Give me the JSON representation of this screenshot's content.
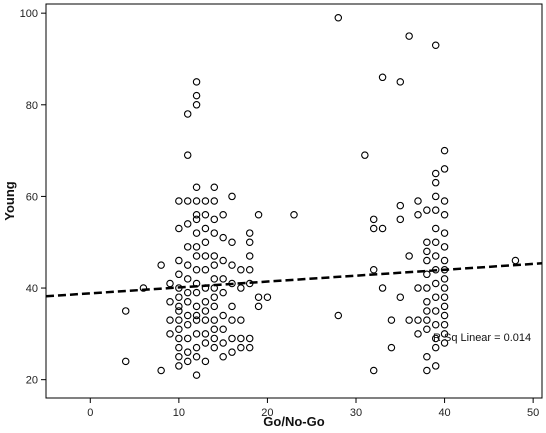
{
  "chart_data": {
    "type": "scatter",
    "xlabel": "Go/No-Go",
    "ylabel": "Young",
    "xlim": [
      -5,
      51
    ],
    "ylim": [
      16,
      102
    ],
    "xticks": [
      0,
      10,
      20,
      30,
      40,
      50
    ],
    "yticks": [
      20,
      40,
      60,
      80,
      100
    ],
    "xtick_labels": [
      "0",
      "10",
      "20",
      "30",
      "40",
      "50"
    ],
    "ytick_labels": [
      "20",
      "40",
      "60",
      "80",
      "100"
    ],
    "grid": false,
    "annotation": "R Sq Linear = 0.014",
    "fit_line": {
      "style": "dashed",
      "x": [
        -5,
        51
      ],
      "y": [
        38.2,
        45.4
      ]
    },
    "points": [
      [
        4,
        35
      ],
      [
        4,
        24
      ],
      [
        6,
        40
      ],
      [
        8,
        45
      ],
      [
        8,
        22
      ],
      [
        9,
        33
      ],
      [
        9,
        30
      ],
      [
        9,
        37
      ],
      [
        9,
        41
      ],
      [
        10,
        59
      ],
      [
        10,
        53
      ],
      [
        10,
        46
      ],
      [
        10,
        43
      ],
      [
        10,
        40
      ],
      [
        10,
        38
      ],
      [
        10,
        36
      ],
      [
        10,
        35
      ],
      [
        10,
        33
      ],
      [
        10,
        31
      ],
      [
        10,
        29
      ],
      [
        10,
        27
      ],
      [
        10,
        25
      ],
      [
        10,
        23
      ],
      [
        11,
        78
      ],
      [
        11,
        69
      ],
      [
        11,
        59
      ],
      [
        11,
        54
      ],
      [
        11,
        49
      ],
      [
        11,
        45
      ],
      [
        11,
        42
      ],
      [
        11,
        39
      ],
      [
        11,
        37
      ],
      [
        11,
        34
      ],
      [
        11,
        32
      ],
      [
        11,
        29
      ],
      [
        11,
        26
      ],
      [
        11,
        24
      ],
      [
        12,
        85
      ],
      [
        12,
        82
      ],
      [
        12,
        80
      ],
      [
        12,
        62
      ],
      [
        12,
        59
      ],
      [
        12,
        56
      ],
      [
        12,
        55
      ],
      [
        12,
        52
      ],
      [
        12,
        49
      ],
      [
        12,
        47
      ],
      [
        12,
        44
      ],
      [
        12,
        41
      ],
      [
        12,
        39
      ],
      [
        12,
        36
      ],
      [
        12,
        34
      ],
      [
        12,
        33
      ],
      [
        12,
        30
      ],
      [
        12,
        27
      ],
      [
        12,
        25
      ],
      [
        12,
        21
      ],
      [
        13,
        59
      ],
      [
        13,
        56
      ],
      [
        13,
        53
      ],
      [
        13,
        50
      ],
      [
        13,
        47
      ],
      [
        13,
        44
      ],
      [
        13,
        40
      ],
      [
        13,
        37
      ],
      [
        13,
        35
      ],
      [
        13,
        33
      ],
      [
        13,
        30
      ],
      [
        13,
        28
      ],
      [
        13,
        24
      ],
      [
        14,
        62
      ],
      [
        14,
        59
      ],
      [
        14,
        55
      ],
      [
        14,
        52
      ],
      [
        14,
        47
      ],
      [
        14,
        45
      ],
      [
        14,
        42
      ],
      [
        14,
        40
      ],
      [
        14,
        38
      ],
      [
        14,
        36
      ],
      [
        14,
        33
      ],
      [
        14,
        31
      ],
      [
        14,
        29
      ],
      [
        14,
        27
      ],
      [
        15,
        56
      ],
      [
        15,
        51
      ],
      [
        15,
        46
      ],
      [
        15,
        42
      ],
      [
        15,
        39
      ],
      [
        15,
        34
      ],
      [
        15,
        31
      ],
      [
        15,
        28
      ],
      [
        15,
        25
      ],
      [
        16,
        60
      ],
      [
        16,
        50
      ],
      [
        16,
        45
      ],
      [
        16,
        41
      ],
      [
        16,
        36
      ],
      [
        16,
        33
      ],
      [
        16,
        29
      ],
      [
        16,
        26
      ],
      [
        17,
        44
      ],
      [
        17,
        40
      ],
      [
        17,
        33
      ],
      [
        17,
        29
      ],
      [
        17,
        27
      ],
      [
        18,
        52
      ],
      [
        18,
        50
      ],
      [
        18,
        47
      ],
      [
        18,
        44
      ],
      [
        18,
        41
      ],
      [
        18,
        29
      ],
      [
        18,
        27
      ],
      [
        19,
        56
      ],
      [
        19,
        38
      ],
      [
        19,
        36
      ],
      [
        20,
        38
      ],
      [
        23,
        56
      ],
      [
        28,
        99
      ],
      [
        28,
        34
      ],
      [
        31,
        69
      ],
      [
        32,
        55
      ],
      [
        32,
        53
      ],
      [
        32,
        44
      ],
      [
        32,
        22
      ],
      [
        33,
        86
      ],
      [
        33,
        53
      ],
      [
        33,
        40
      ],
      [
        34,
        33
      ],
      [
        34,
        27
      ],
      [
        35,
        85
      ],
      [
        35,
        58
      ],
      [
        35,
        55
      ],
      [
        35,
        38
      ],
      [
        36,
        95
      ],
      [
        36,
        47
      ],
      [
        36,
        33
      ],
      [
        37,
        59
      ],
      [
        37,
        56
      ],
      [
        37,
        40
      ],
      [
        37,
        33
      ],
      [
        37,
        30
      ],
      [
        38,
        57
      ],
      [
        38,
        50
      ],
      [
        38,
        48
      ],
      [
        38,
        46
      ],
      [
        38,
        43
      ],
      [
        38,
        40
      ],
      [
        38,
        37
      ],
      [
        38,
        35
      ],
      [
        38,
        33
      ],
      [
        38,
        31
      ],
      [
        38,
        25
      ],
      [
        38,
        22
      ],
      [
        39,
        93
      ],
      [
        39,
        65
      ],
      [
        39,
        63
      ],
      [
        39,
        60
      ],
      [
        39,
        57
      ],
      [
        39,
        53
      ],
      [
        39,
        50
      ],
      [
        39,
        47
      ],
      [
        39,
        44
      ],
      [
        39,
        41
      ],
      [
        39,
        38
      ],
      [
        39,
        35
      ],
      [
        39,
        32
      ],
      [
        39,
        29
      ],
      [
        39,
        27
      ],
      [
        39,
        23
      ],
      [
        40,
        70
      ],
      [
        40,
        66
      ],
      [
        40,
        59
      ],
      [
        40,
        56
      ],
      [
        40,
        52
      ],
      [
        40,
        49
      ],
      [
        40,
        46
      ],
      [
        40,
        44
      ],
      [
        40,
        42
      ],
      [
        40,
        40
      ],
      [
        40,
        38
      ],
      [
        40,
        36
      ],
      [
        40,
        34
      ],
      [
        40,
        32
      ],
      [
        40,
        30
      ],
      [
        40,
        28
      ],
      [
        48,
        46
      ]
    ]
  }
}
